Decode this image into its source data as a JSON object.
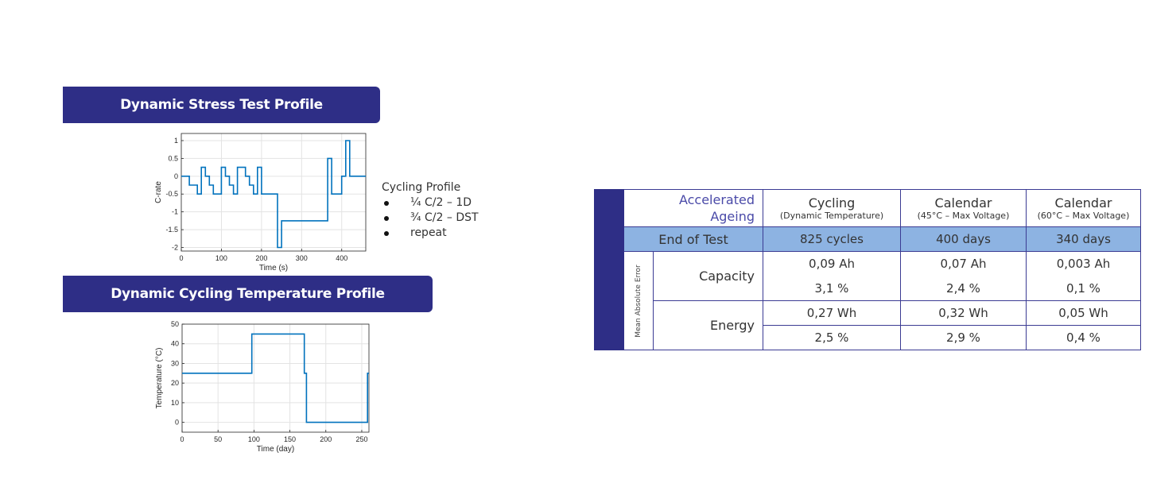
{
  "titles": {
    "dst": "Dynamic Stress Test Profile",
    "temp": "Dynamic Cycling Temperature Profile"
  },
  "cycling_profile": {
    "heading": "Cycling Profile",
    "items": [
      "¼ C/2 – 1D",
      "¾ C/2 – DST",
      "repeat"
    ]
  },
  "chart_data": [
    {
      "type": "line",
      "title": "",
      "xlabel": "Time (s)",
      "ylabel": "C-rate",
      "xlim": [
        0,
        460
      ],
      "ylim": [
        -2.1,
        1.2
      ],
      "xticks": [
        0,
        100,
        200,
        300,
        400
      ],
      "yticks": [
        -2,
        -1.5,
        -1,
        -0.5,
        0,
        0.5,
        1
      ],
      "ytick_labels": [
        "-2",
        "-1.5",
        "-1",
        "-0.5",
        "0",
        "0.5",
        "1"
      ],
      "grid": true,
      "color": "#0072bd",
      "series": [
        {
          "x": [
            0,
            20,
            20,
            40,
            40,
            50,
            50,
            60,
            60,
            70,
            70,
            80,
            80,
            100,
            100,
            110,
            110,
            120,
            120,
            130,
            130,
            140,
            140,
            160,
            160,
            170,
            170,
            180,
            180,
            190,
            190,
            200,
            200,
            240,
            240,
            250,
            250,
            365,
            365,
            375,
            375,
            400,
            400,
            410,
            410,
            420,
            420,
            460
          ],
          "y": [
            0,
            0,
            -0.25,
            -0.25,
            -0.5,
            -0.5,
            0.25,
            0.25,
            0,
            0,
            -0.25,
            -0.25,
            -0.5,
            -0.5,
            0.25,
            0.25,
            0,
            0,
            -0.25,
            -0.25,
            -0.5,
            -0.5,
            0.25,
            0.25,
            0,
            0,
            -0.25,
            -0.25,
            -0.5,
            -0.5,
            0.25,
            0.25,
            -0.5,
            -0.5,
            -2,
            -2,
            -1.25,
            -1.25,
            0.5,
            0.5,
            -0.5,
            -0.5,
            0,
            0,
            1,
            1,
            0,
            0
          ]
        }
      ]
    },
    {
      "type": "line",
      "title": "",
      "xlabel": "Time (day)",
      "ylabel": "Temperature (°C)",
      "xlim": [
        0,
        260
      ],
      "ylim": [
        -5,
        50
      ],
      "xticks": [
        0,
        50,
        100,
        150,
        200,
        250
      ],
      "yticks": [
        0,
        10,
        20,
        30,
        40,
        50
      ],
      "ytick_labels": [
        "0",
        "10",
        "20",
        "30",
        "40",
        "50"
      ],
      "grid": true,
      "color": "#0072bd",
      "series": [
        {
          "x": [
            0,
            97,
            97,
            170,
            170,
            173,
            173,
            258,
            258,
            260
          ],
          "y": [
            25,
            25,
            45,
            45,
            25,
            25,
            0,
            0,
            25,
            25
          ]
        }
      ]
    }
  ],
  "table": {
    "header": {
      "corner_lines": [
        "Accelerated",
        "Ageing"
      ],
      "columns": [
        {
          "main": "Cycling",
          "sub": "(Dynamic Temperature)"
        },
        {
          "main": "Calendar",
          "sub": "(45°C – Max Voltage)"
        },
        {
          "main": "Calendar",
          "sub": "(60°C – Max Voltage)"
        }
      ]
    },
    "end_of_test": {
      "label": "End of Test",
      "values": [
        "825 cycles",
        "400 days",
        "340 days"
      ]
    },
    "group_label": "Mean Absolute Error",
    "metrics": [
      {
        "name": "Capacity",
        "row1": [
          "0,09 Ah",
          "0,07 Ah",
          "0,003 Ah"
        ],
        "row2": [
          "3,1 %",
          "2,4 %",
          "0,1 %"
        ]
      },
      {
        "name": "Energy",
        "row1": [
          "0,27 Wh",
          "0,32 Wh",
          "0,05 Wh"
        ],
        "row2": [
          "2,5 %",
          "2,9 %",
          "0,4 %"
        ]
      }
    ]
  },
  "colors": {
    "banner": "#2e2e86",
    "highlight": "#8db3e2",
    "line": "#0072bd"
  }
}
